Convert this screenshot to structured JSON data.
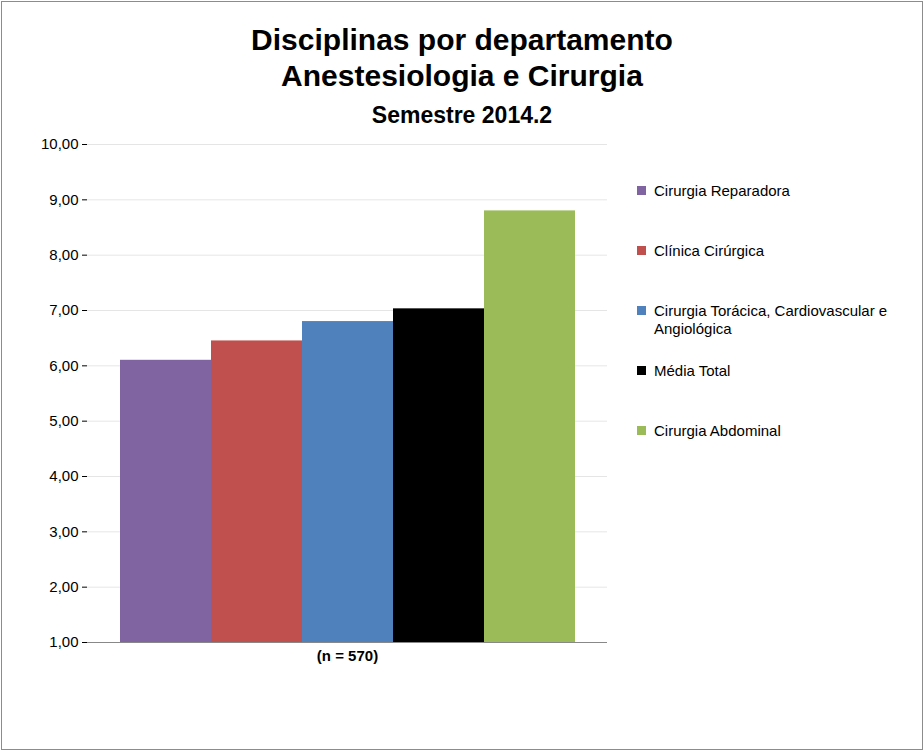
{
  "chart_data": {
    "type": "bar",
    "title": "Disciplinas por departamento\nAnestesiologia e Cirurgia",
    "subtitle": "Semestre 2014.2",
    "categories": [
      "(n = 570)"
    ],
    "series": [
      {
        "name": "Cirurgia Reparadora",
        "color": "#8064a2",
        "values": [
          6.1
        ]
      },
      {
        "name": "Clínica Cirúrgica",
        "color": "#c0504d",
        "values": [
          6.45
        ]
      },
      {
        "name": "Cirurgia Torácica, Cardiovascular e Angiológica",
        "color": "#4f81bd",
        "values": [
          6.8
        ]
      },
      {
        "name": "Média Total",
        "color": "#000000",
        "values": [
          7.03
        ]
      },
      {
        "name": "Cirurgia Abdominal",
        "color": "#9bbb59",
        "values": [
          8.8
        ]
      }
    ],
    "ylim": [
      1,
      10
    ],
    "yticks": [
      {
        "value": 1,
        "label": "1,00"
      },
      {
        "value": 2,
        "label": "2,00"
      },
      {
        "value": 3,
        "label": "3,00"
      },
      {
        "value": 4,
        "label": "4,00"
      },
      {
        "value": 5,
        "label": "5,00"
      },
      {
        "value": 6,
        "label": "6,00"
      },
      {
        "value": 7,
        "label": "7,00"
      },
      {
        "value": 8,
        "label": "8,00"
      },
      {
        "value": 9,
        "label": "9,00"
      },
      {
        "value": 10,
        "label": "10,00"
      }
    ],
    "grid": true,
    "legend": "right"
  }
}
